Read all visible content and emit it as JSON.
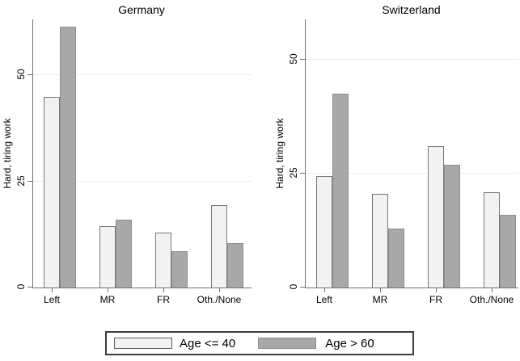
{
  "colors": {
    "series1_fill": "#f2f2f2",
    "series1_border": "#787878",
    "series2_fill": "#a8a8a8",
    "series2_border": "#8f8f8f",
    "axis": "#707070",
    "gridline": "#e9eef1",
    "text": "#000000"
  },
  "legend": {
    "items": [
      {
        "label": "Age <= 40",
        "fill": "#f2f2f2",
        "border": "#606060"
      },
      {
        "label": "Age > 60",
        "fill": "#a8a8a8",
        "border": "#8f8f8f"
      }
    ]
  },
  "chart_data": [
    {
      "type": "bar",
      "title": "Germany",
      "ylabel": "Hard, tiring work",
      "xlabel": "",
      "categories": [
        "Left",
        "MR",
        "FR",
        "Oth./None"
      ],
      "series": [
        {
          "name": "Age <= 40",
          "values": [
            45,
            14.5,
            13,
            19.5
          ]
        },
        {
          "name": "Age > 60",
          "values": [
            61.5,
            16,
            8.5,
            10.5
          ]
        }
      ],
      "yticks": [
        0,
        25,
        50
      ],
      "ylim": [
        0,
        63.2
      ],
      "grid": true,
      "legend_position": "bottom-shared"
    },
    {
      "type": "bar",
      "title": "Switzerland",
      "ylabel": "Hard, tiring work",
      "xlabel": "",
      "categories": [
        "Left",
        "MR",
        "FR",
        "Oth./None"
      ],
      "series": [
        {
          "name": "Age <= 40",
          "values": [
            24.5,
            20.5,
            31,
            21
          ]
        },
        {
          "name": "Age > 60",
          "values": [
            42.5,
            13,
            27,
            16
          ]
        }
      ],
      "yticks": [
        0,
        25,
        50
      ],
      "ylim": [
        0,
        58.9
      ],
      "grid": true,
      "legend_position": "bottom-shared"
    }
  ]
}
